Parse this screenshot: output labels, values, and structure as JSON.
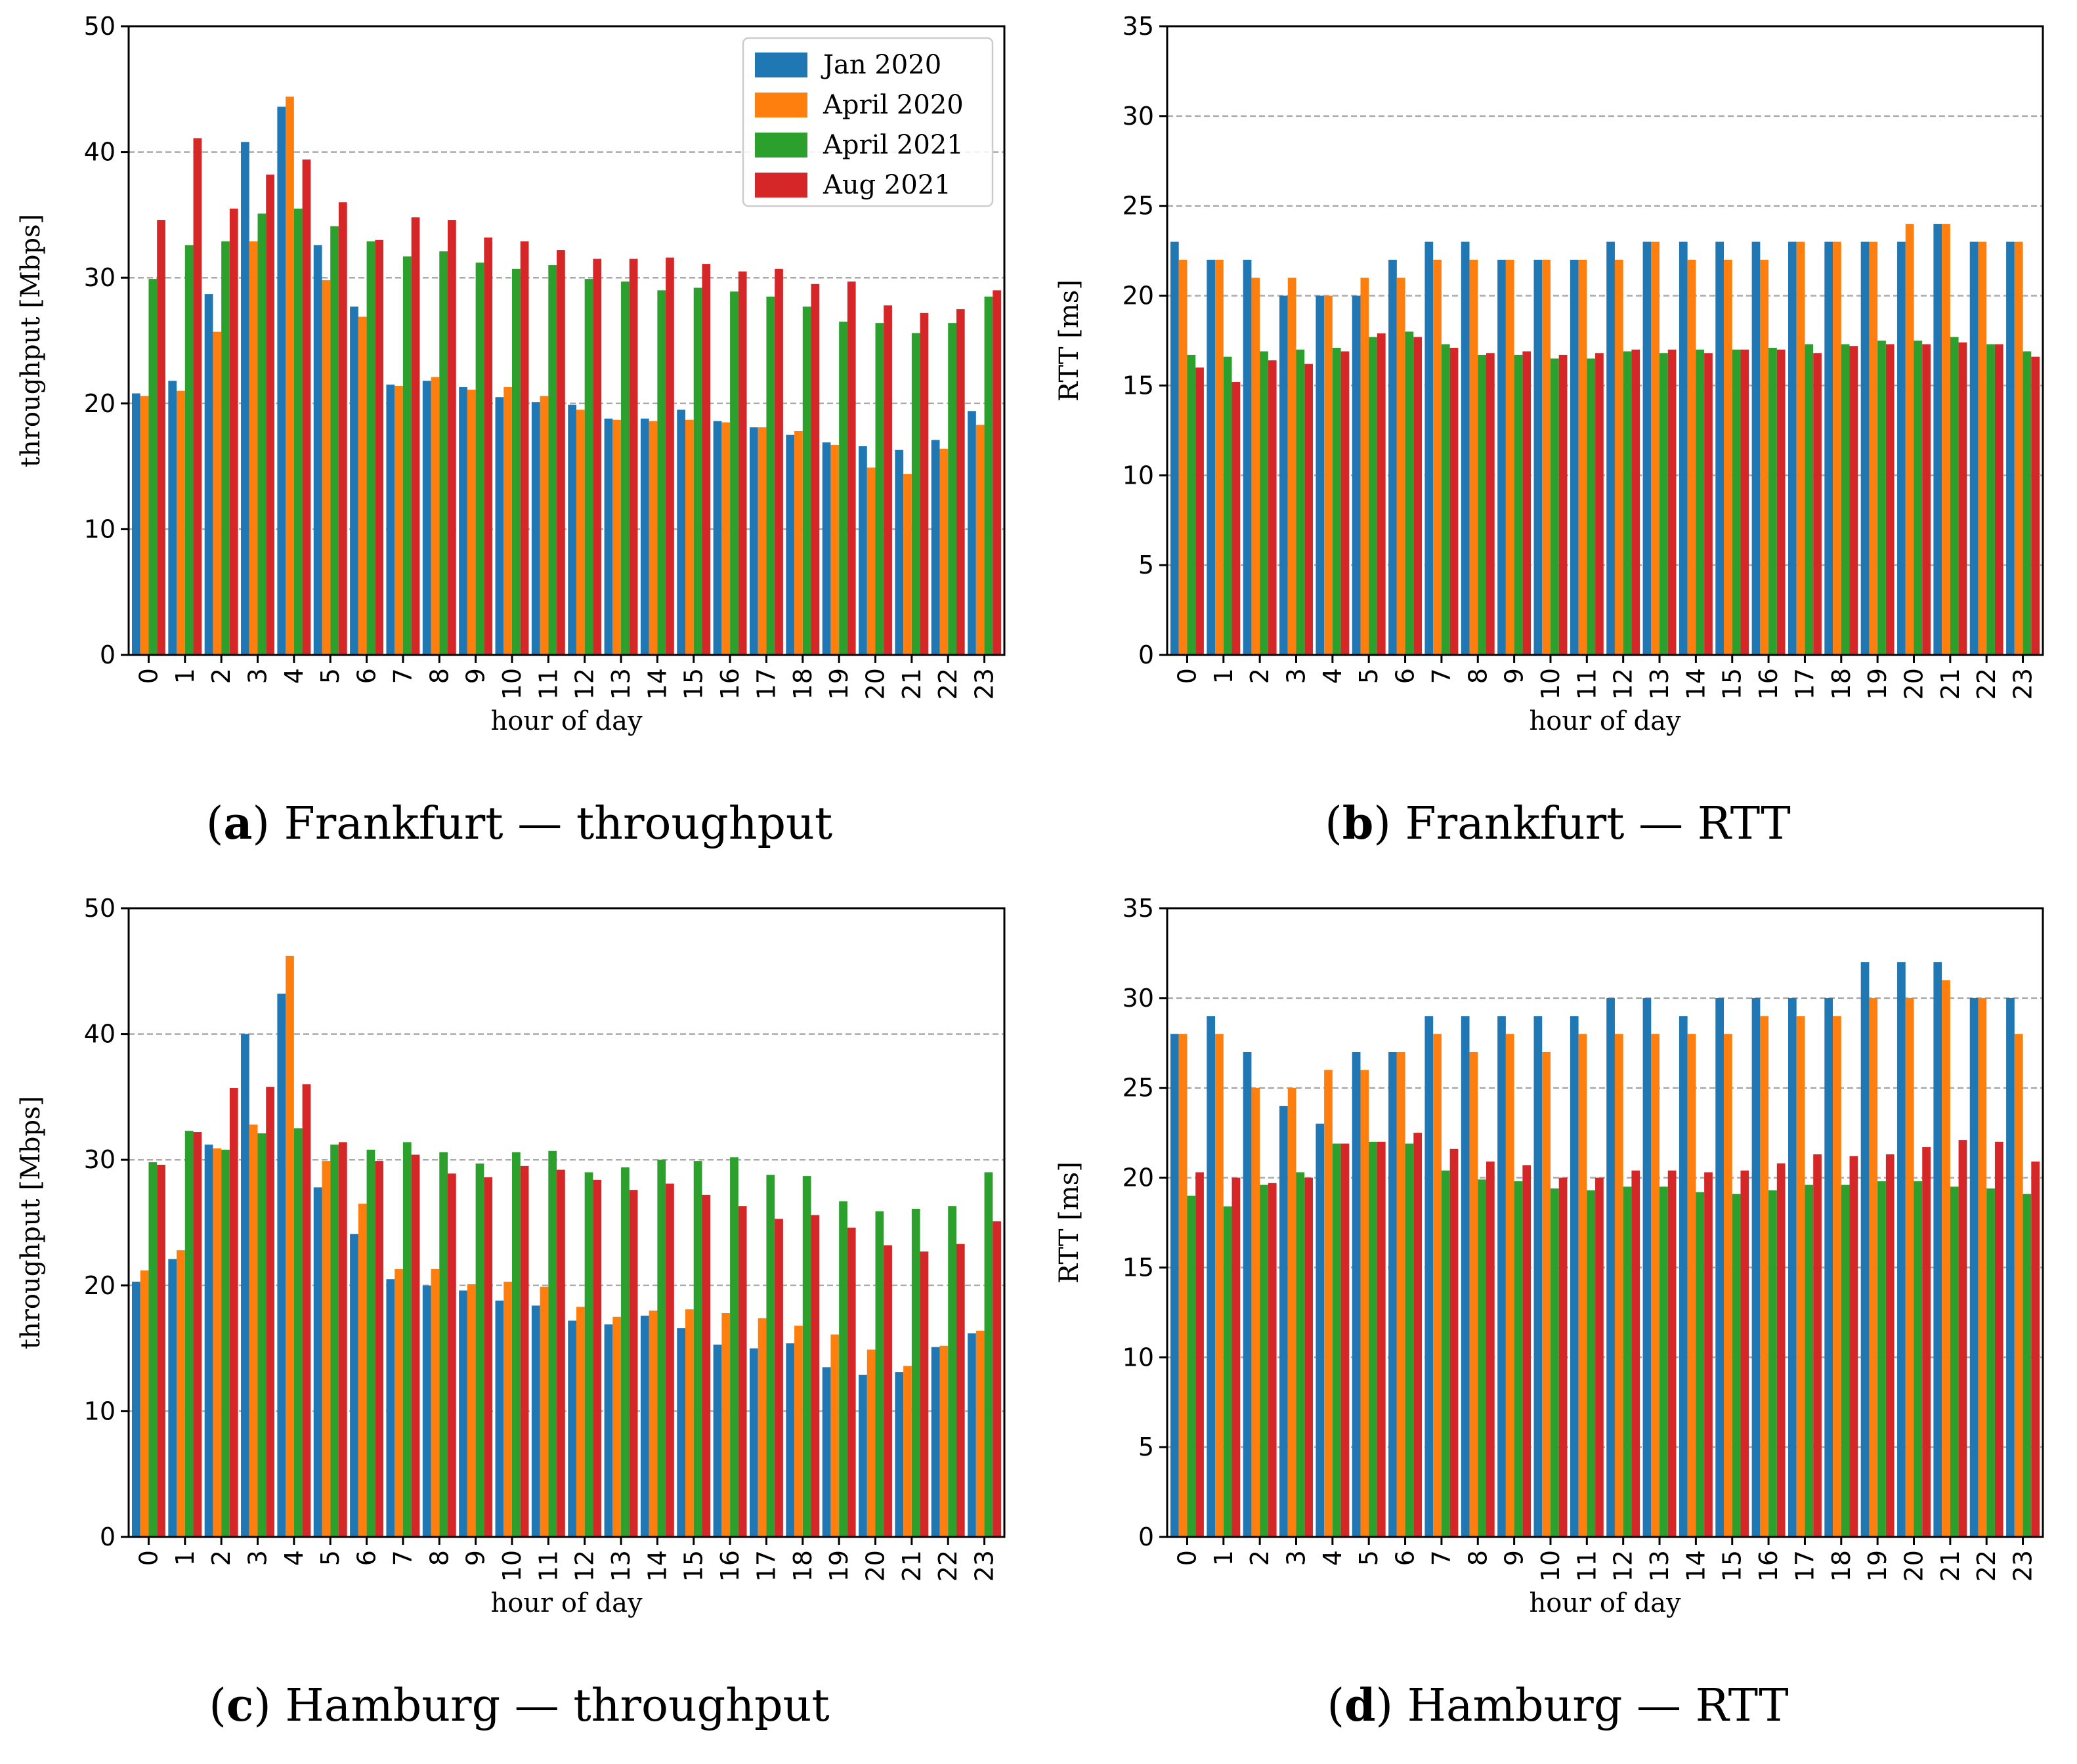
{
  "colors": {
    "series": [
      "#1f77b4",
      "#ff7f0e",
      "#2ca02c",
      "#d62728"
    ],
    "grid": "#aaaaaa"
  },
  "legend": {
    "entries": [
      "Jan 2020",
      "April 2020",
      "April 2021",
      "Aug 2021"
    ]
  },
  "chart_data": [
    {
      "id": "a",
      "type": "bar",
      "caption": {
        "letter": "a",
        "text": ") Frankfurt — throughput"
      },
      "xlabel": "hour of day",
      "ylabel": "throughput [Mbps]",
      "ylim": [
        0,
        50
      ],
      "yticks": [
        0,
        10,
        20,
        30,
        40,
        50
      ],
      "grid": [
        10,
        20,
        30,
        40
      ],
      "legend": "top-right",
      "categories": [
        "0",
        "1",
        "2",
        "3",
        "4",
        "5",
        "6",
        "7",
        "8",
        "9",
        "10",
        "11",
        "12",
        "13",
        "14",
        "15",
        "16",
        "17",
        "18",
        "19",
        "20",
        "21",
        "22",
        "23"
      ],
      "series": [
        {
          "name": "Jan 2020",
          "values": [
            20.8,
            21.8,
            28.7,
            40.8,
            43.6,
            32.6,
            27.7,
            21.5,
            21.8,
            21.3,
            20.5,
            20.1,
            19.9,
            18.8,
            18.8,
            19.5,
            18.6,
            18.1,
            17.5,
            16.9,
            16.6,
            16.3,
            17.1,
            19.4
          ]
        },
        {
          "name": "April 2020",
          "values": [
            20.6,
            21.0,
            25.7,
            32.9,
            44.4,
            29.8,
            26.9,
            21.4,
            22.1,
            21.1,
            21.3,
            20.6,
            19.5,
            18.7,
            18.6,
            18.7,
            18.5,
            18.1,
            17.8,
            16.7,
            14.9,
            14.4,
            16.4,
            18.3
          ]
        },
        {
          "name": "April 2021",
          "values": [
            29.9,
            32.6,
            32.9,
            35.1,
            35.5,
            34.1,
            32.9,
            31.7,
            32.1,
            31.2,
            30.7,
            31.0,
            29.9,
            29.7,
            29.0,
            29.2,
            28.9,
            28.5,
            27.7,
            26.5,
            26.4,
            25.6,
            26.4,
            28.5
          ]
        },
        {
          "name": "Aug 2021",
          "values": [
            34.6,
            41.1,
            35.5,
            38.2,
            39.4,
            36.0,
            33.0,
            34.8,
            34.6,
            33.2,
            32.9,
            32.2,
            31.5,
            31.5,
            31.6,
            31.1,
            30.5,
            30.7,
            29.5,
            29.7,
            27.8,
            27.2,
            27.5,
            29.0
          ]
        }
      ]
    },
    {
      "id": "b",
      "type": "bar",
      "caption": {
        "letter": "b",
        "text": ") Frankfurt — RTT"
      },
      "xlabel": "hour of day",
      "ylabel": "RTT [ms]",
      "ylim": [
        0,
        35
      ],
      "yticks": [
        0,
        5,
        10,
        15,
        20,
        25,
        30,
        35
      ],
      "grid": [
        5,
        10,
        15,
        20,
        25,
        30
      ],
      "categories": [
        "0",
        "1",
        "2",
        "3",
        "4",
        "5",
        "6",
        "7",
        "8",
        "9",
        "10",
        "11",
        "12",
        "13",
        "14",
        "15",
        "16",
        "17",
        "18",
        "19",
        "20",
        "21",
        "22",
        "23"
      ],
      "series": [
        {
          "name": "Jan 2020",
          "values": [
            23,
            22,
            22,
            20,
            20,
            20,
            22,
            23,
            23,
            22,
            22,
            22,
            23,
            23,
            23,
            23,
            23,
            23,
            23,
            23,
            23,
            24,
            23,
            23
          ]
        },
        {
          "name": "April 2020",
          "values": [
            22,
            22,
            21,
            21,
            20,
            21,
            21,
            22,
            22,
            22,
            22,
            22,
            22,
            23,
            22,
            22,
            22,
            23,
            23,
            23,
            24,
            24,
            23,
            23
          ]
        },
        {
          "name": "April 2021",
          "values": [
            16.7,
            16.6,
            16.9,
            17.0,
            17.1,
            17.7,
            18.0,
            17.3,
            16.7,
            16.7,
            16.5,
            16.5,
            16.9,
            16.8,
            17.0,
            17.0,
            17.1,
            17.3,
            17.3,
            17.5,
            17.5,
            17.7,
            17.3,
            16.9
          ]
        },
        {
          "name": "Aug 2021",
          "values": [
            16.0,
            15.2,
            16.4,
            16.2,
            16.9,
            17.9,
            17.7,
            17.1,
            16.8,
            16.9,
            16.7,
            16.8,
            17.0,
            17.0,
            16.8,
            17.0,
            17.0,
            16.8,
            17.2,
            17.3,
            17.3,
            17.4,
            17.3,
            16.6
          ]
        }
      ]
    },
    {
      "id": "c",
      "type": "bar",
      "caption": {
        "letter": "c",
        "text": ") Hamburg — throughput"
      },
      "xlabel": "hour of day",
      "ylabel": "throughput [Mbps]",
      "ylim": [
        0,
        50
      ],
      "yticks": [
        0,
        10,
        20,
        30,
        40,
        50
      ],
      "grid": [
        10,
        20,
        30,
        40
      ],
      "categories": [
        "0",
        "1",
        "2",
        "3",
        "4",
        "5",
        "6",
        "7",
        "8",
        "9",
        "10",
        "11",
        "12",
        "13",
        "14",
        "15",
        "16",
        "17",
        "18",
        "19",
        "20",
        "21",
        "22",
        "23"
      ],
      "series": [
        {
          "name": "Jan 2020",
          "values": [
            20.3,
            22.1,
            31.2,
            40.0,
            43.2,
            27.8,
            24.1,
            20.5,
            20.0,
            19.6,
            18.8,
            18.4,
            17.2,
            16.9,
            17.6,
            16.6,
            15.3,
            15.0,
            15.4,
            13.5,
            12.9,
            13.1,
            15.1,
            16.2
          ]
        },
        {
          "name": "April 2020",
          "values": [
            21.2,
            22.8,
            30.9,
            32.8,
            46.2,
            29.9,
            26.5,
            21.3,
            21.3,
            20.1,
            20.3,
            19.9,
            18.3,
            17.5,
            18.0,
            18.1,
            17.8,
            17.4,
            16.8,
            16.1,
            14.9,
            13.6,
            15.2,
            16.4
          ]
        },
        {
          "name": "April 2021",
          "values": [
            29.8,
            32.3,
            30.8,
            32.1,
            32.5,
            31.2,
            30.8,
            31.4,
            30.6,
            29.7,
            30.6,
            30.7,
            29.0,
            29.4,
            30.0,
            29.9,
            30.2,
            28.8,
            28.7,
            26.7,
            25.9,
            26.1,
            26.3,
            29.0
          ]
        },
        {
          "name": "Aug 2021",
          "values": [
            29.6,
            32.2,
            35.7,
            35.8,
            36.0,
            31.4,
            29.9,
            30.4,
            28.9,
            28.6,
            29.5,
            29.2,
            28.4,
            27.6,
            28.1,
            27.2,
            26.3,
            25.3,
            25.6,
            24.6,
            23.2,
            22.7,
            23.3,
            25.1
          ]
        }
      ]
    },
    {
      "id": "d",
      "type": "bar",
      "caption": {
        "letter": "d",
        "text": ") Hamburg — RTT"
      },
      "xlabel": "hour of day",
      "ylabel": "RTT [ms]",
      "ylim": [
        0,
        35
      ],
      "yticks": [
        0,
        5,
        10,
        15,
        20,
        25,
        30,
        35
      ],
      "grid": [
        5,
        10,
        15,
        20,
        25,
        30
      ],
      "categories": [
        "0",
        "1",
        "2",
        "3",
        "4",
        "5",
        "6",
        "7",
        "8",
        "9",
        "10",
        "11",
        "12",
        "13",
        "14",
        "15",
        "16",
        "17",
        "18",
        "19",
        "20",
        "21",
        "22",
        "23"
      ],
      "series": [
        {
          "name": "Jan 2020",
          "values": [
            28,
            29,
            27,
            24,
            23,
            27,
            27,
            29,
            29,
            29,
            29,
            29,
            30,
            30,
            29,
            30,
            30,
            30,
            30,
            32,
            32,
            32,
            30,
            30
          ]
        },
        {
          "name": "April 2020",
          "values": [
            28,
            28,
            25,
            25,
            26,
            26,
            27,
            28,
            27,
            28,
            27,
            28,
            28,
            28,
            28,
            28,
            29,
            29,
            29,
            30,
            30,
            31,
            30,
            28
          ]
        },
        {
          "name": "April 2021",
          "values": [
            19.0,
            18.4,
            19.6,
            20.3,
            21.9,
            22.0,
            21.9,
            20.4,
            19.9,
            19.8,
            19.4,
            19.3,
            19.5,
            19.5,
            19.2,
            19.1,
            19.3,
            19.6,
            19.6,
            19.8,
            19.8,
            19.5,
            19.4,
            19.1
          ]
        },
        {
          "name": "Aug 2021",
          "values": [
            20.3,
            20.0,
            19.7,
            20.0,
            21.9,
            22.0,
            22.5,
            21.6,
            20.9,
            20.7,
            20.0,
            20.0,
            20.4,
            20.4,
            20.3,
            20.4,
            20.8,
            21.3,
            21.2,
            21.3,
            21.7,
            22.1,
            22.0,
            20.9
          ]
        }
      ]
    }
  ]
}
